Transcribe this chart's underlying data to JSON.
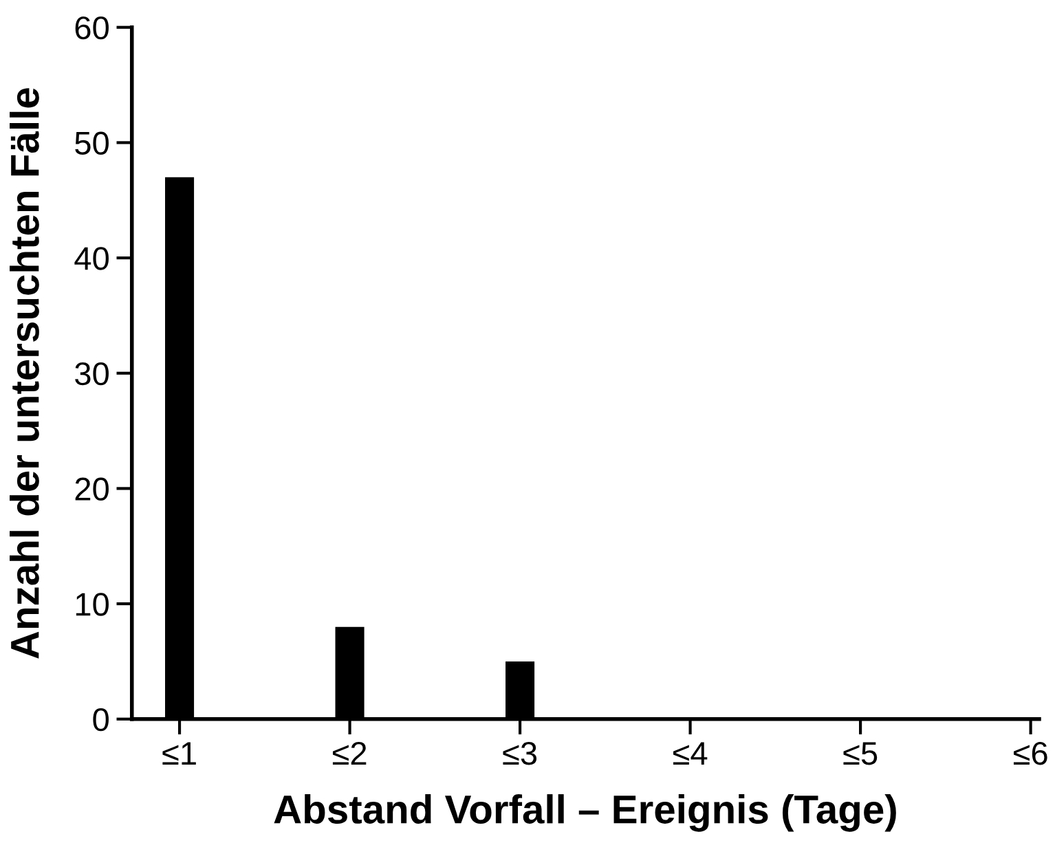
{
  "chart_data": {
    "type": "bar",
    "xlabel": "Abstand Vorfall – Ereignis (Tage)",
    "ylabel": "Anzahl der untersuchten Fälle",
    "categories": [
      "≤1",
      "≤2",
      "≤3",
      "≤4",
      "≤5",
      "≤6"
    ],
    "values": [
      47,
      8,
      5,
      0,
      0,
      0
    ],
    "color": "#000000",
    "ylim": [
      0,
      60
    ],
    "yticks": [
      0,
      10,
      20,
      30,
      40,
      50,
      60
    ],
    "grid": false,
    "legend": false
  }
}
